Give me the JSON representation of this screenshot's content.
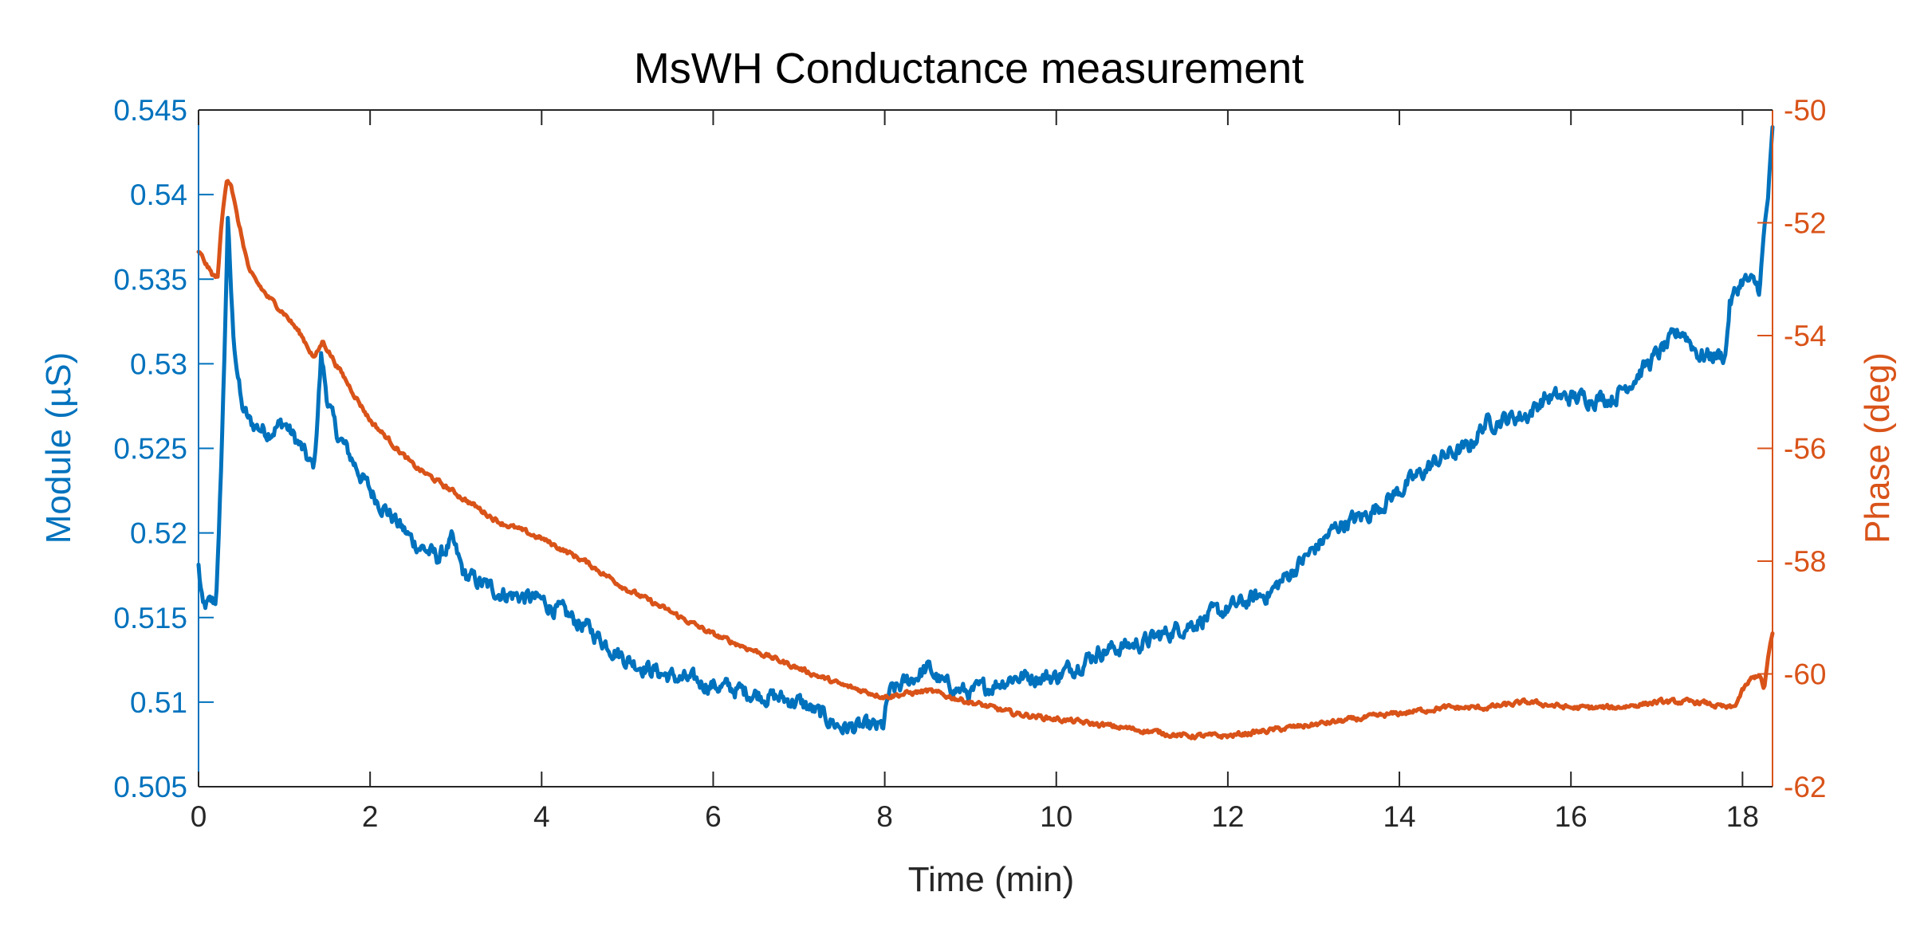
{
  "chart_data": {
    "type": "line",
    "title": "MsWH Conductance measurement",
    "xlabel": "Time (min)",
    "ylabel_left": "Module (µS)",
    "ylabel_right": "Phase (deg)",
    "xlim": [
      0,
      18.35
    ],
    "ylim_left": [
      0.505,
      0.545
    ],
    "ylim_right": [
      -62,
      -50
    ],
    "x_ticks": [
      0,
      2,
      4,
      6,
      8,
      10,
      12,
      14,
      16,
      18
    ],
    "x_tick_labels": [
      "0",
      "2",
      "4",
      "6",
      "8",
      "10",
      "12",
      "14",
      "16",
      "18"
    ],
    "y_left_ticks": [
      0.505,
      0.51,
      0.515,
      0.52,
      0.525,
      0.53,
      0.535,
      0.54,
      0.545
    ],
    "y_left_tick_labels": [
      "0.505",
      "0.51",
      "0.515",
      "0.52",
      "0.525",
      "0.53",
      "0.535",
      "0.54",
      "0.545"
    ],
    "y_right_ticks": [
      -62,
      -60,
      -58,
      -56,
      -54,
      -52,
      -50
    ],
    "y_right_tick_labels": [
      "-62",
      "-60",
      "-58",
      "-56",
      "-54",
      "-52",
      "-50"
    ],
    "grid": false,
    "colors": {
      "left_series": "#0072BD",
      "right_series": "#D95319",
      "axes": "#262626"
    },
    "series": [
      {
        "name": "Module",
        "axis": "left",
        "color": "#0072BD",
        "noise": 0.0008,
        "x": [
          0,
          0.05,
          0.2,
          0.24,
          0.3,
          0.34,
          0.4,
          0.5,
          0.6,
          0.8,
          1.0,
          1.2,
          1.3,
          1.35,
          1.43,
          1.5,
          1.6,
          2.0,
          2.5,
          2.8,
          2.95,
          3.1,
          3.5,
          4.0,
          4.5,
          5.0,
          5.5,
          6.0,
          6.5,
          7.0,
          7.5,
          7.9,
          7.98,
          8.05,
          8.2,
          8.5,
          8.7,
          9.0,
          9.5,
          10.0,
          10.5,
          11.0,
          11.5,
          12.0,
          12.5,
          13.0,
          13.3,
          13.6,
          14.0,
          14.5,
          14.8,
          15.0,
          15.5,
          15.7,
          16.0,
          16.5,
          16.8,
          17.0,
          17.3,
          17.5,
          17.8,
          17.85,
          18.0,
          18.2,
          18.25,
          18.3,
          18.35
        ],
        "y": [
          0.518,
          0.5155,
          0.516,
          0.52,
          0.53,
          0.5385,
          0.532,
          0.5275,
          0.5265,
          0.526,
          0.5265,
          0.525,
          0.524,
          0.524,
          0.5305,
          0.528,
          0.526,
          0.5225,
          0.5195,
          0.5185,
          0.5195,
          0.5175,
          0.5165,
          0.516,
          0.5145,
          0.5125,
          0.5115,
          0.511,
          0.5105,
          0.51,
          0.5085,
          0.5085,
          0.5085,
          0.5105,
          0.511,
          0.512,
          0.511,
          0.5105,
          0.5115,
          0.5115,
          0.513,
          0.5135,
          0.5145,
          0.5155,
          0.5165,
          0.519,
          0.5205,
          0.521,
          0.5225,
          0.5245,
          0.525,
          0.5265,
          0.527,
          0.528,
          0.528,
          0.528,
          0.5295,
          0.5305,
          0.532,
          0.5305,
          0.5305,
          0.5335,
          0.535,
          0.5345,
          0.5375,
          0.54,
          0.5435
        ]
      },
      {
        "name": "Phase",
        "axis": "right",
        "color": "#D95319",
        "noise": 0.07,
        "x": [
          0,
          0.15,
          0.22,
          0.27,
          0.33,
          0.38,
          0.45,
          0.6,
          0.8,
          1.0,
          1.2,
          1.35,
          1.45,
          1.6,
          2.0,
          2.5,
          3.0,
          3.5,
          4.0,
          4.5,
          5.0,
          5.5,
          6.0,
          6.5,
          7.0,
          7.5,
          8.0,
          8.5,
          9.0,
          9.5,
          10.0,
          10.5,
          11.0,
          11.5,
          12.0,
          12.5,
          13.0,
          13.5,
          14.0,
          14.5,
          15.0,
          15.5,
          16.0,
          16.5,
          17.0,
          17.5,
          17.8,
          17.9,
          18.0,
          18.1,
          18.2,
          18.25,
          18.3,
          18.35
        ],
        "y": [
          -52.5,
          -52.9,
          -53.0,
          -52.0,
          -51.2,
          -51.3,
          -51.9,
          -52.9,
          -53.3,
          -53.6,
          -54.0,
          -54.4,
          -54.1,
          -54.5,
          -55.5,
          -56.3,
          -56.8,
          -57.3,
          -57.6,
          -58.0,
          -58.5,
          -58.9,
          -59.3,
          -59.6,
          -59.9,
          -60.2,
          -60.4,
          -60.3,
          -60.5,
          -60.7,
          -60.8,
          -60.9,
          -61.0,
          -61.1,
          -61.1,
          -61.0,
          -60.9,
          -60.8,
          -60.7,
          -60.6,
          -60.6,
          -60.5,
          -60.6,
          -60.6,
          -60.5,
          -60.5,
          -60.6,
          -60.6,
          -60.3,
          -60.1,
          -60.0,
          -60.3,
          -59.7,
          -59.3
        ]
      }
    ]
  }
}
